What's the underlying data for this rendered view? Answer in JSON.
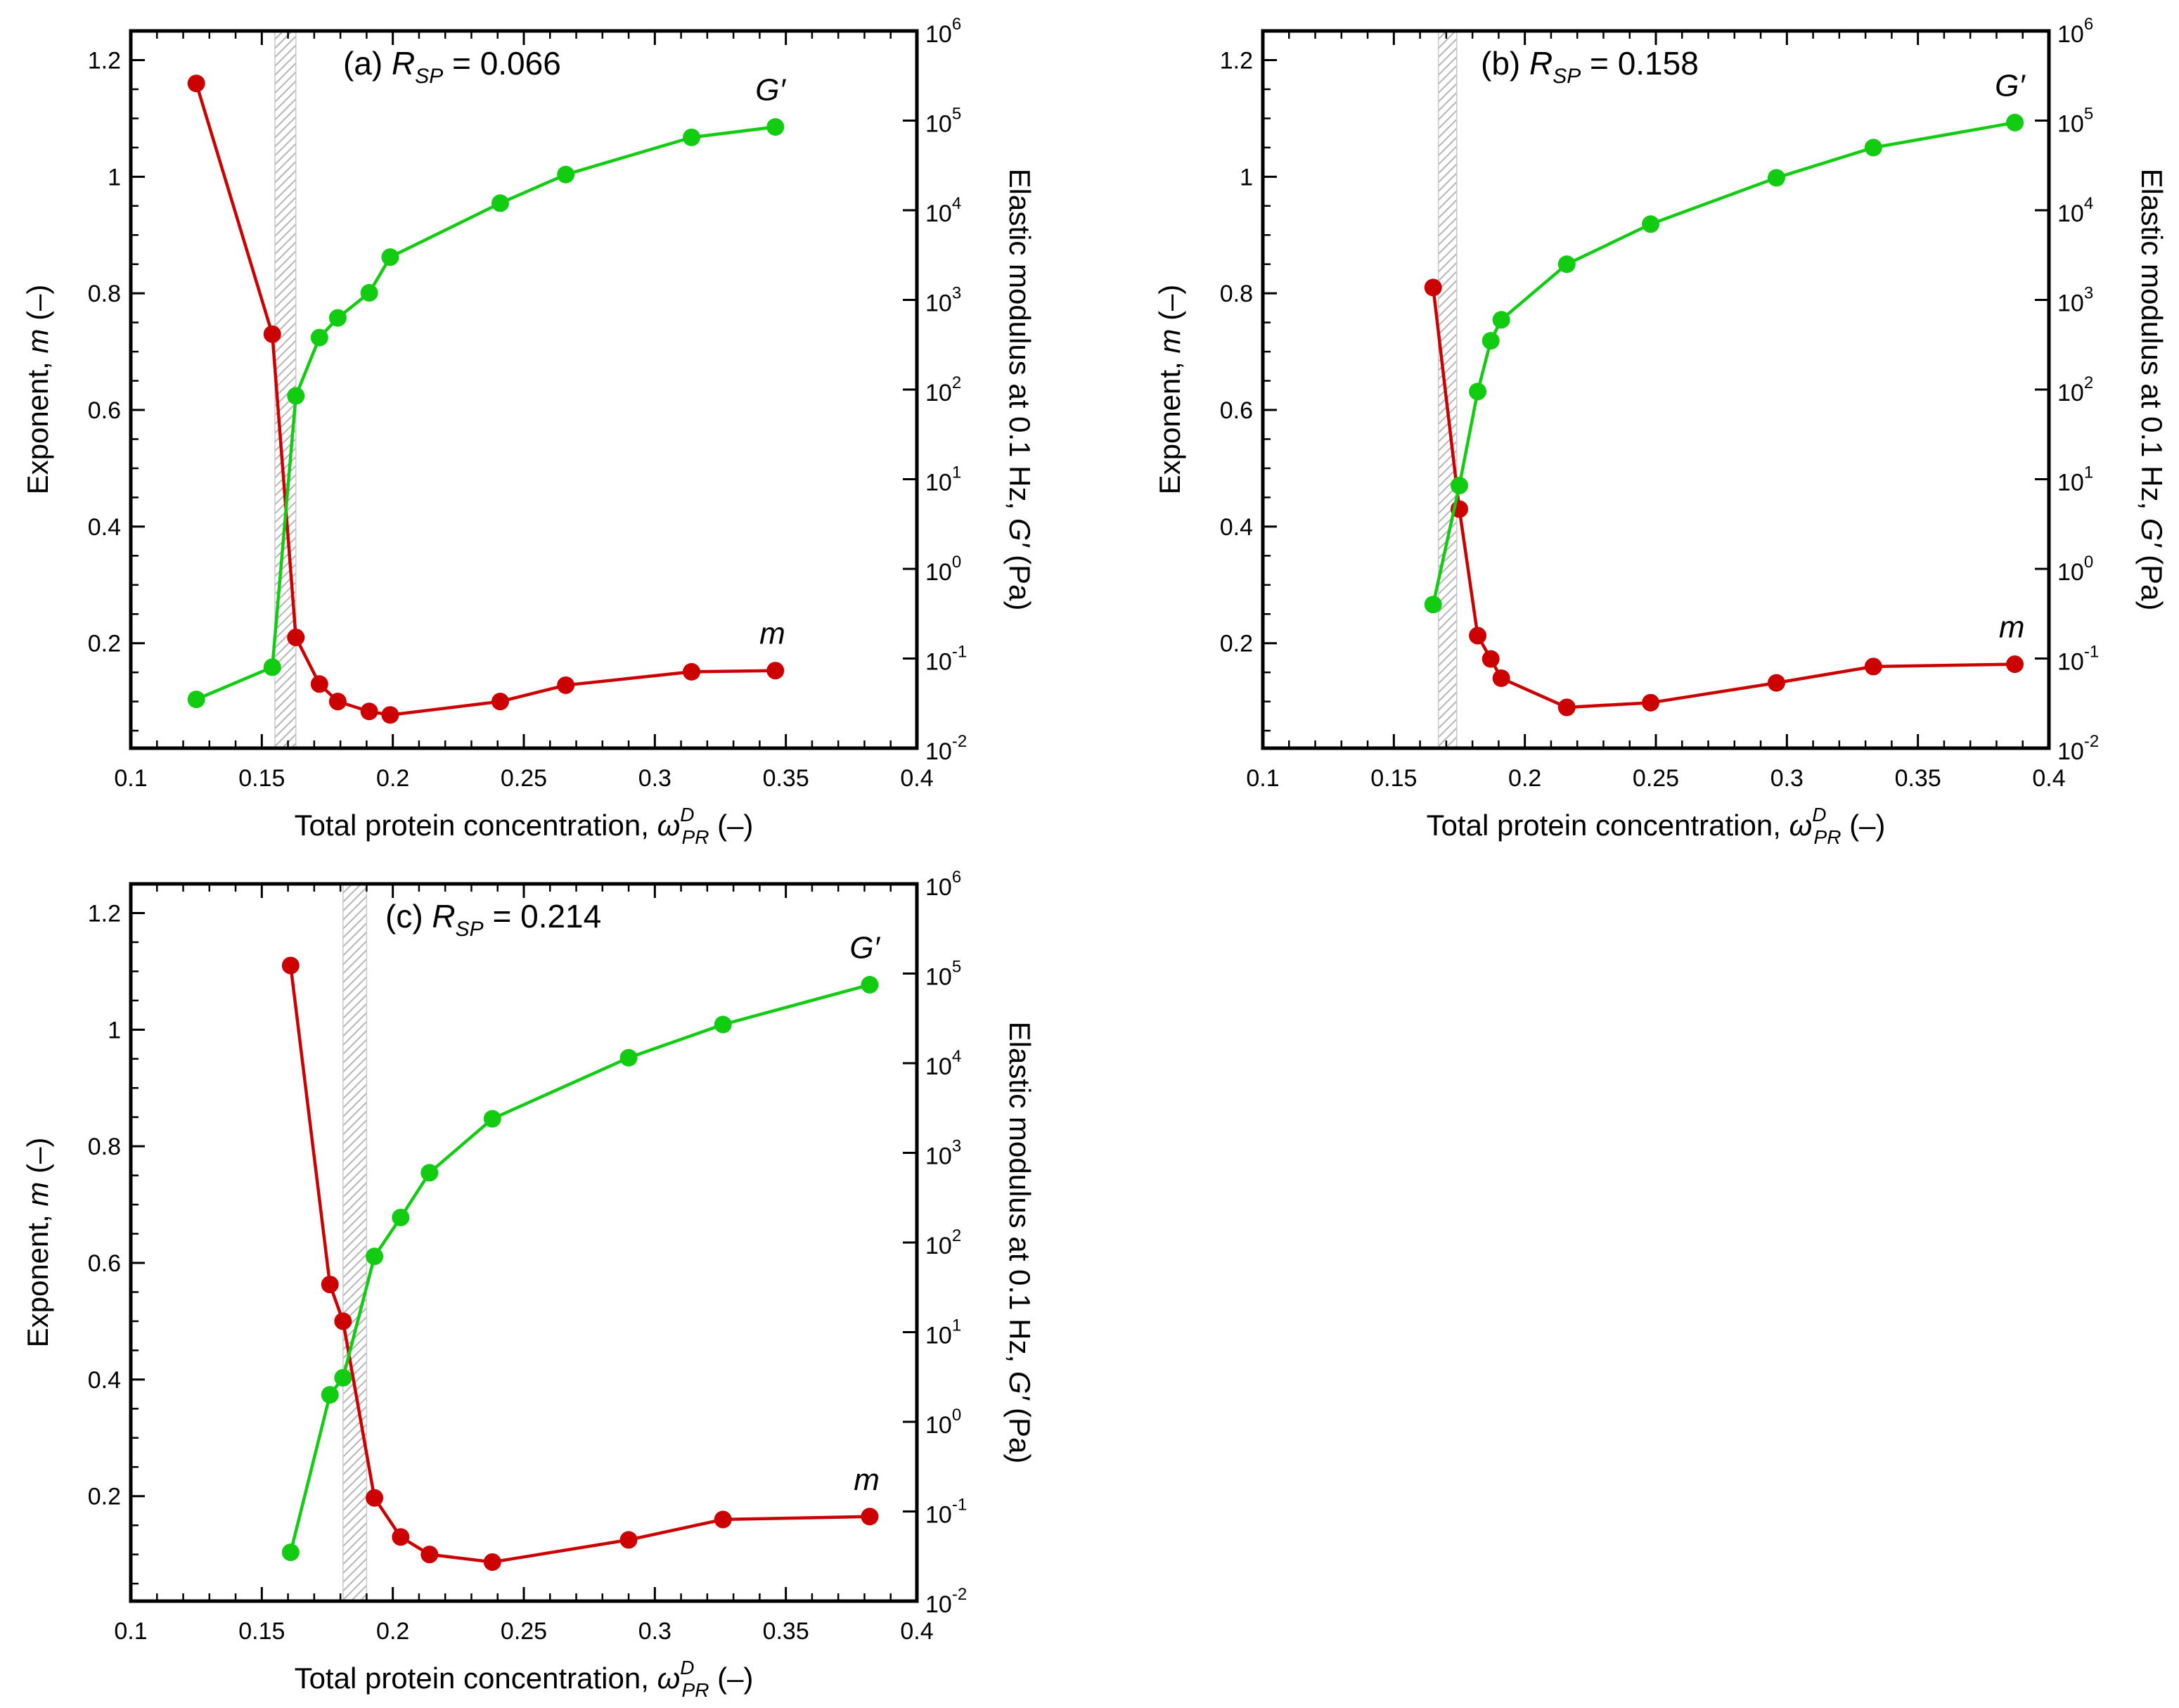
{
  "figure": {
    "colors": {
      "m_series": "#cc0000",
      "g_series": "#11cc11",
      "shade": "#bdbdbd",
      "axis": "#000000"
    }
  },
  "chart_data": [
    {
      "type": "line",
      "panel_label": "(a)",
      "annotation": {
        "prefix": "(a) ",
        "symbol": "R",
        "subscript": "SP",
        "value": " = 0.066"
      },
      "xlabel": {
        "text": "Total protein concentration, ",
        "symbol": "ω",
        "sup": "D",
        "sub": "PR",
        "suffix": " (–)"
      },
      "ylabel_left": {
        "text": "Exponent, ",
        "symbol": "m",
        "suffix": " (–)"
      },
      "ylabel_right": {
        "text": "Elastic modulus at 0.1 Hz, ",
        "symbol": "G′",
        "suffix": " (Pa)"
      },
      "xlim": [
        0.1,
        0.4
      ],
      "xticks": [
        "0.1",
        "0.15",
        "0.2",
        "0.25",
        "0.3",
        "0.35",
        "0.4"
      ],
      "ylim_left": [
        0.02,
        1.25
      ],
      "yticks_left": [
        "0.2",
        "0.4",
        "0.6",
        "0.8",
        "1",
        "1.2"
      ],
      "ylim_right_log10": [
        -2,
        6
      ],
      "yticks_right": [
        {
          "base": "10",
          "exp": "-2"
        },
        {
          "base": "10",
          "exp": "-1"
        },
        {
          "base": "10",
          "exp": "0"
        },
        {
          "base": "10",
          "exp": "1"
        },
        {
          "base": "10",
          "exp": "2"
        },
        {
          "base": "10",
          "exp": "3"
        },
        {
          "base": "10",
          "exp": "4"
        },
        {
          "base": "10",
          "exp": "5"
        },
        {
          "base": "10",
          "exp": "6"
        }
      ],
      "shaded_band_x": [
        0.155,
        0.163
      ],
      "series": [
        {
          "name": "m",
          "label": "m",
          "axis": "left",
          "x": [
            0.125,
            0.154,
            0.163,
            0.172,
            0.179,
            0.191,
            0.199,
            0.241,
            0.266,
            0.314,
            0.346
          ],
          "y": [
            1.16,
            0.73,
            0.21,
            0.13,
            0.1,
            0.083,
            0.077,
            0.1,
            0.128,
            0.151,
            0.153
          ]
        },
        {
          "name": "G′",
          "label": "G′",
          "axis": "right",
          "x": [
            0.125,
            0.154,
            0.163,
            0.172,
            0.179,
            0.191,
            0.199,
            0.241,
            0.266,
            0.314,
            0.346
          ],
          "y": [
            0.035,
            0.08,
            85,
            380,
            630,
            1200,
            3000,
            12000,
            25000,
            65000,
            85000
          ]
        }
      ],
      "series_label_positions": {
        "m": "lower-right",
        "G′": "upper-right"
      }
    },
    {
      "type": "line",
      "panel_label": "(b)",
      "annotation": {
        "prefix": "(b) ",
        "symbol": "R",
        "subscript": "SP",
        "value": " = 0.158"
      },
      "xlabel": {
        "text": "Total protein concentration, ",
        "symbol": "ω",
        "sup": "D",
        "sub": "PR",
        "suffix": " (–)"
      },
      "ylabel_left": {
        "text": "Exponent, ",
        "symbol": "m",
        "suffix": " (–)"
      },
      "ylabel_right": {
        "text": "Elastic modulus at 0.1 Hz, ",
        "symbol": "G′",
        "suffix": " (Pa)"
      },
      "xlim": [
        0.1,
        0.4
      ],
      "xticks": [
        "0.1",
        "0.15",
        "0.2",
        "0.25",
        "0.3",
        "0.35",
        "0.4"
      ],
      "ylim_left": [
        0.02,
        1.25
      ],
      "yticks_left": [
        "0.2",
        "0.4",
        "0.6",
        "0.8",
        "1",
        "1.2"
      ],
      "ylim_right_log10": [
        -2,
        6
      ],
      "yticks_right": [
        {
          "base": "10",
          "exp": "-2"
        },
        {
          "base": "10",
          "exp": "-1"
        },
        {
          "base": "10",
          "exp": "0"
        },
        {
          "base": "10",
          "exp": "1"
        },
        {
          "base": "10",
          "exp": "2"
        },
        {
          "base": "10",
          "exp": "3"
        },
        {
          "base": "10",
          "exp": "4"
        },
        {
          "base": "10",
          "exp": "5"
        },
        {
          "base": "10",
          "exp": "6"
        }
      ],
      "shaded_band_x": [
        0.167,
        0.174
      ],
      "series": [
        {
          "name": "m",
          "label": "m",
          "axis": "left",
          "x": [
            0.165,
            0.175,
            0.182,
            0.187,
            0.191,
            0.216,
            0.248,
            0.296,
            0.333,
            0.387
          ],
          "y": [
            0.81,
            0.43,
            0.213,
            0.173,
            0.14,
            0.09,
            0.098,
            0.132,
            0.16,
            0.164
          ]
        },
        {
          "name": "G′",
          "label": "G′",
          "axis": "right",
          "x": [
            0.165,
            0.175,
            0.182,
            0.187,
            0.191,
            0.216,
            0.248,
            0.296,
            0.333,
            0.387
          ],
          "y": [
            0.4,
            8.5,
            95,
            350,
            600,
            2500,
            7000,
            23000,
            50000,
            95000
          ]
        }
      ],
      "series_label_positions": {
        "m": "lower-right",
        "G′": "upper-right"
      }
    },
    {
      "type": "line",
      "panel_label": "(c)",
      "annotation": {
        "prefix": "(c) ",
        "symbol": "R",
        "subscript": "SP",
        "value": " = 0.214"
      },
      "xlabel": {
        "text": "Total protein concentration, ",
        "symbol": "ω",
        "sup": "D",
        "sub": "PR",
        "suffix": " (–)"
      },
      "ylabel_left": {
        "text": "Exponent, ",
        "symbol": "m",
        "suffix": " (–)"
      },
      "ylabel_right": {
        "text": "Elastic modulus at 0.1 Hz, ",
        "symbol": "G′",
        "suffix": " (Pa)"
      },
      "xlim": [
        0.1,
        0.4
      ],
      "xticks": [
        "0.1",
        "0.15",
        "0.2",
        "0.25",
        "0.3",
        "0.35",
        "0.4"
      ],
      "ylim_left": [
        0.02,
        1.25
      ],
      "yticks_left": [
        "0.2",
        "0.4",
        "0.6",
        "0.8",
        "1",
        "1.2"
      ],
      "ylim_right_log10": [
        -2,
        6
      ],
      "yticks_right": [
        {
          "base": "10",
          "exp": "-2"
        },
        {
          "base": "10",
          "exp": "-1"
        },
        {
          "base": "10",
          "exp": "0"
        },
        {
          "base": "10",
          "exp": "1"
        },
        {
          "base": "10",
          "exp": "2"
        },
        {
          "base": "10",
          "exp": "3"
        },
        {
          "base": "10",
          "exp": "4"
        },
        {
          "base": "10",
          "exp": "5"
        },
        {
          "base": "10",
          "exp": "6"
        }
      ],
      "shaded_band_x": [
        0.181,
        0.19
      ],
      "series": [
        {
          "name": "m",
          "label": "m",
          "axis": "left",
          "x": [
            0.161,
            0.176,
            0.181,
            0.193,
            0.203,
            0.214,
            0.238,
            0.29,
            0.326,
            0.382
          ],
          "y": [
            1.11,
            0.563,
            0.5,
            0.197,
            0.13,
            0.1,
            0.087,
            0.125,
            0.16,
            0.165
          ]
        },
        {
          "name": "G′",
          "label": "G′",
          "axis": "right",
          "x": [
            0.161,
            0.176,
            0.181,
            0.193,
            0.203,
            0.214,
            0.238,
            0.29,
            0.326,
            0.382
          ],
          "y": [
            0.035,
            2.0,
            3.1,
            70,
            190,
            600,
            2400,
            11500,
            27000,
            75000
          ]
        }
      ],
      "series_label_positions": {
        "m": "lower-right",
        "G′": "upper-right"
      }
    }
  ]
}
